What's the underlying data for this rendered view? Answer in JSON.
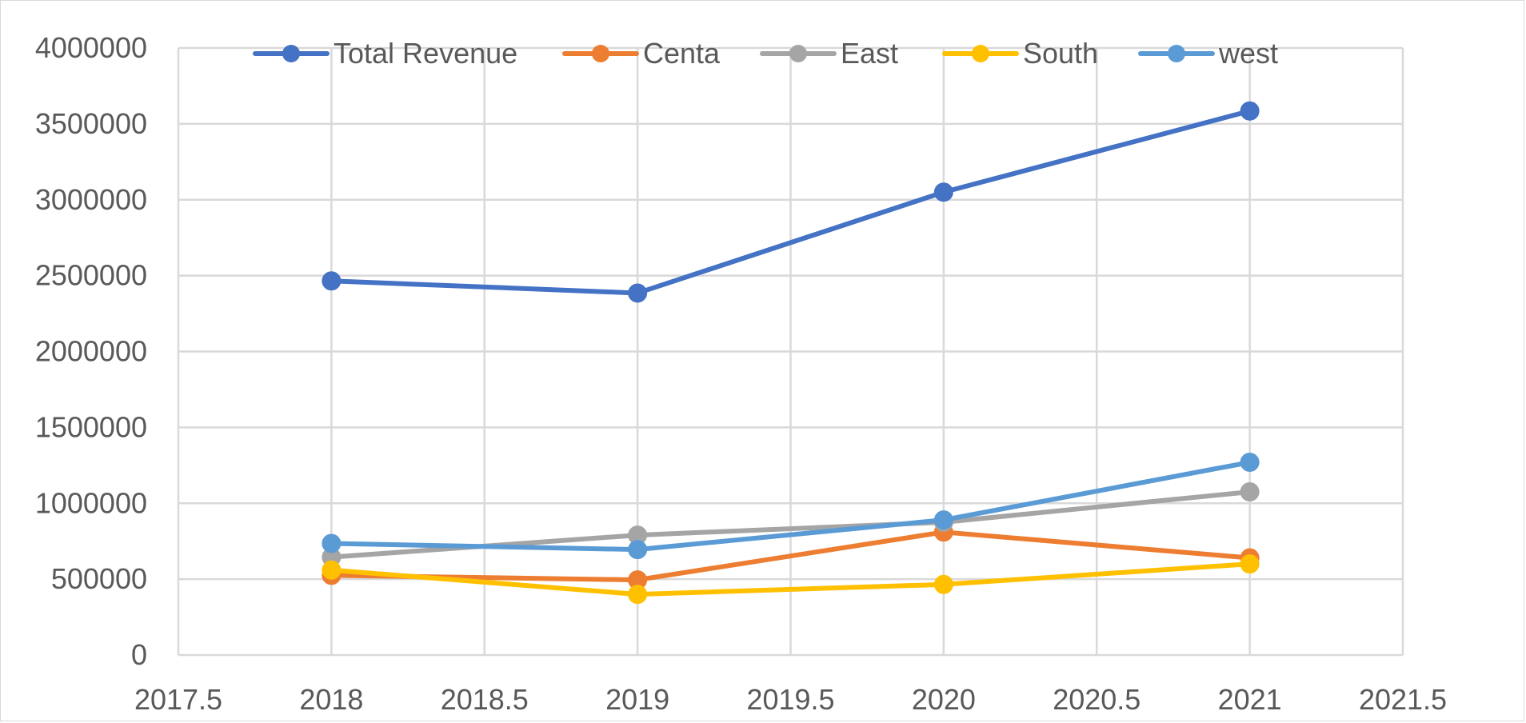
{
  "chart_data": {
    "type": "scatter",
    "title": "",
    "xlabel": "",
    "ylabel": "",
    "xlim": [
      2017.5,
      2021.5
    ],
    "ylim": [
      0,
      4000000
    ],
    "x_ticks": [
      "2017.5",
      "2018",
      "2018.5",
      "2019",
      "2019.5",
      "2020",
      "2020.5",
      "2021",
      "2021.5"
    ],
    "y_ticks": [
      "0",
      "500000",
      "1000000",
      "1500000",
      "2000000",
      "2500000",
      "3000000",
      "3500000",
      "4000000"
    ],
    "grid": true,
    "legend_position": "top",
    "x": [
      2018,
      2019,
      2020,
      2021
    ],
    "series": [
      {
        "name": "Total Revenue",
        "color": "#4472C4",
        "values": [
          2465000,
          2385000,
          3050000,
          3585000
        ]
      },
      {
        "name": "Centa",
        "color": "#ED7D31",
        "values": [
          525000,
          495000,
          810000,
          640000
        ]
      },
      {
        "name": "East",
        "color": "#A5A5A5",
        "values": [
          645000,
          790000,
          875000,
          1075000
        ]
      },
      {
        "name": "South",
        "color": "#FFC000",
        "values": [
          560000,
          400000,
          465000,
          600000
        ]
      },
      {
        "name": "west",
        "color": "#5B9BD5",
        "values": [
          735000,
          695000,
          890000,
          1270000
        ]
      }
    ]
  }
}
